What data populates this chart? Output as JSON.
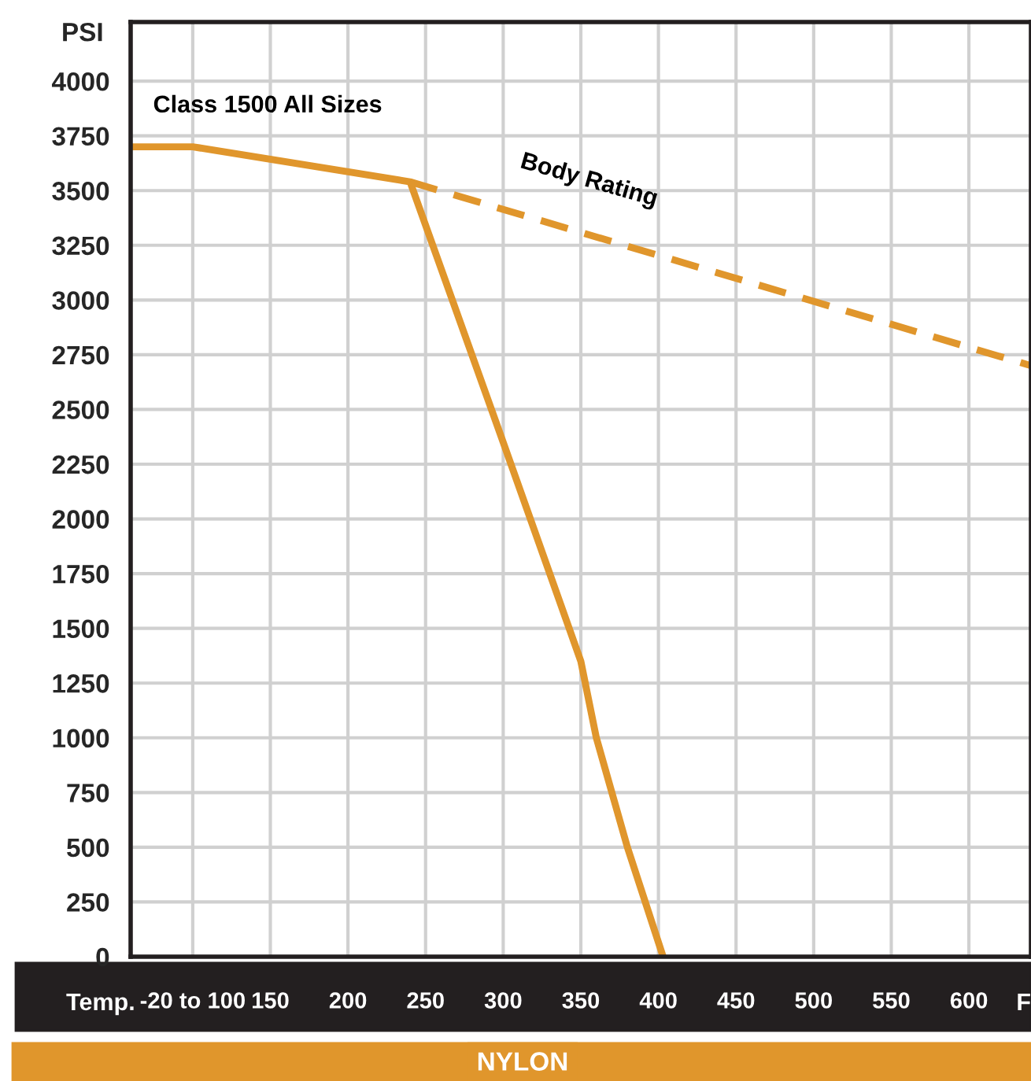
{
  "chart_data": {
    "type": "line",
    "title": "NYLON",
    "ylabel": "PSI",
    "xlabel": "Temp.",
    "series": [
      {
        "x": [
          60,
          100,
          240,
          300,
          350,
          360,
          380,
          403
        ],
        "values": [
          3700,
          3700,
          3540,
          2350,
          1350,
          1000,
          500,
          0
        ],
        "color": "#e0962c",
        "line_style": "solid"
      },
      {
        "x": [
          240,
          640
        ],
        "values": [
          3540,
          2700
        ],
        "color": "#e0962c",
        "line_style": "dashed"
      }
    ],
    "annotations": [
      "Class 1500 All Sizes",
      "Body Rating",
      "F"
    ],
    "xlim": [
      60,
      640
    ],
    "xticks": [
      {
        "value": 100,
        "label": "-20 to 100"
      },
      150,
      200,
      250,
      300,
      350,
      400,
      450,
      500,
      550,
      600
    ],
    "ylim": [
      0,
      4270
    ],
    "yticks": [
      0,
      250,
      500,
      750,
      1000,
      1250,
      1500,
      1750,
      2000,
      2250,
      2500,
      2750,
      3000,
      3250,
      3500,
      3750,
      4000
    ],
    "grid": true,
    "legend": false,
    "marker": "none"
  }
}
